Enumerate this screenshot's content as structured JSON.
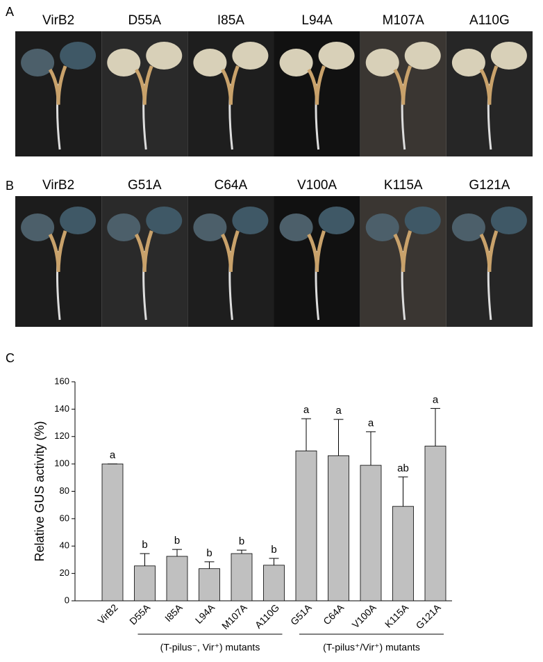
{
  "panel_a": {
    "label": "A",
    "titles": [
      "VirB2",
      "D55A",
      "I85A",
      "L94A",
      "M107A",
      "A110G"
    ]
  },
  "panel_b": {
    "label": "B",
    "titles": [
      "VirB2",
      "G51A",
      "C64A",
      "V100A",
      "K115A",
      "G121A"
    ]
  },
  "chart_data": {
    "type": "bar",
    "panel_label": "C",
    "y_label": "Relative GUS activity (%)",
    "categories": [
      "VirB2",
      "D55A",
      "I85A",
      "L94A",
      "M107A",
      "A110G",
      "G51A",
      "C64A",
      "V100A",
      "K115A",
      "G121A"
    ],
    "values": [
      100,
      25.5,
      32.5,
      23.5,
      34.5,
      26,
      109.5,
      106,
      99,
      69,
      113
    ],
    "errors": [
      0,
      9,
      5,
      5,
      2.5,
      5,
      23.5,
      26.5,
      24.5,
      21.5,
      27.5
    ],
    "annotations": [
      "a",
      "b",
      "b",
      "b",
      "b",
      "b",
      "a",
      "a",
      "a",
      "ab",
      "a"
    ],
    "groups": [
      {
        "label": "(T-pilus⁻, Vir⁺) mutants",
        "from": 1,
        "to": 5
      },
      {
        "label": "(T-pilus⁺/Vir⁺) mutants",
        "from": 6,
        "to": 10
      }
    ],
    "color": "#c0c0c0",
    "ylim": [
      0,
      160
    ],
    "yticks": [
      0,
      20,
      40,
      60,
      80,
      100,
      120,
      140,
      160
    ]
  }
}
